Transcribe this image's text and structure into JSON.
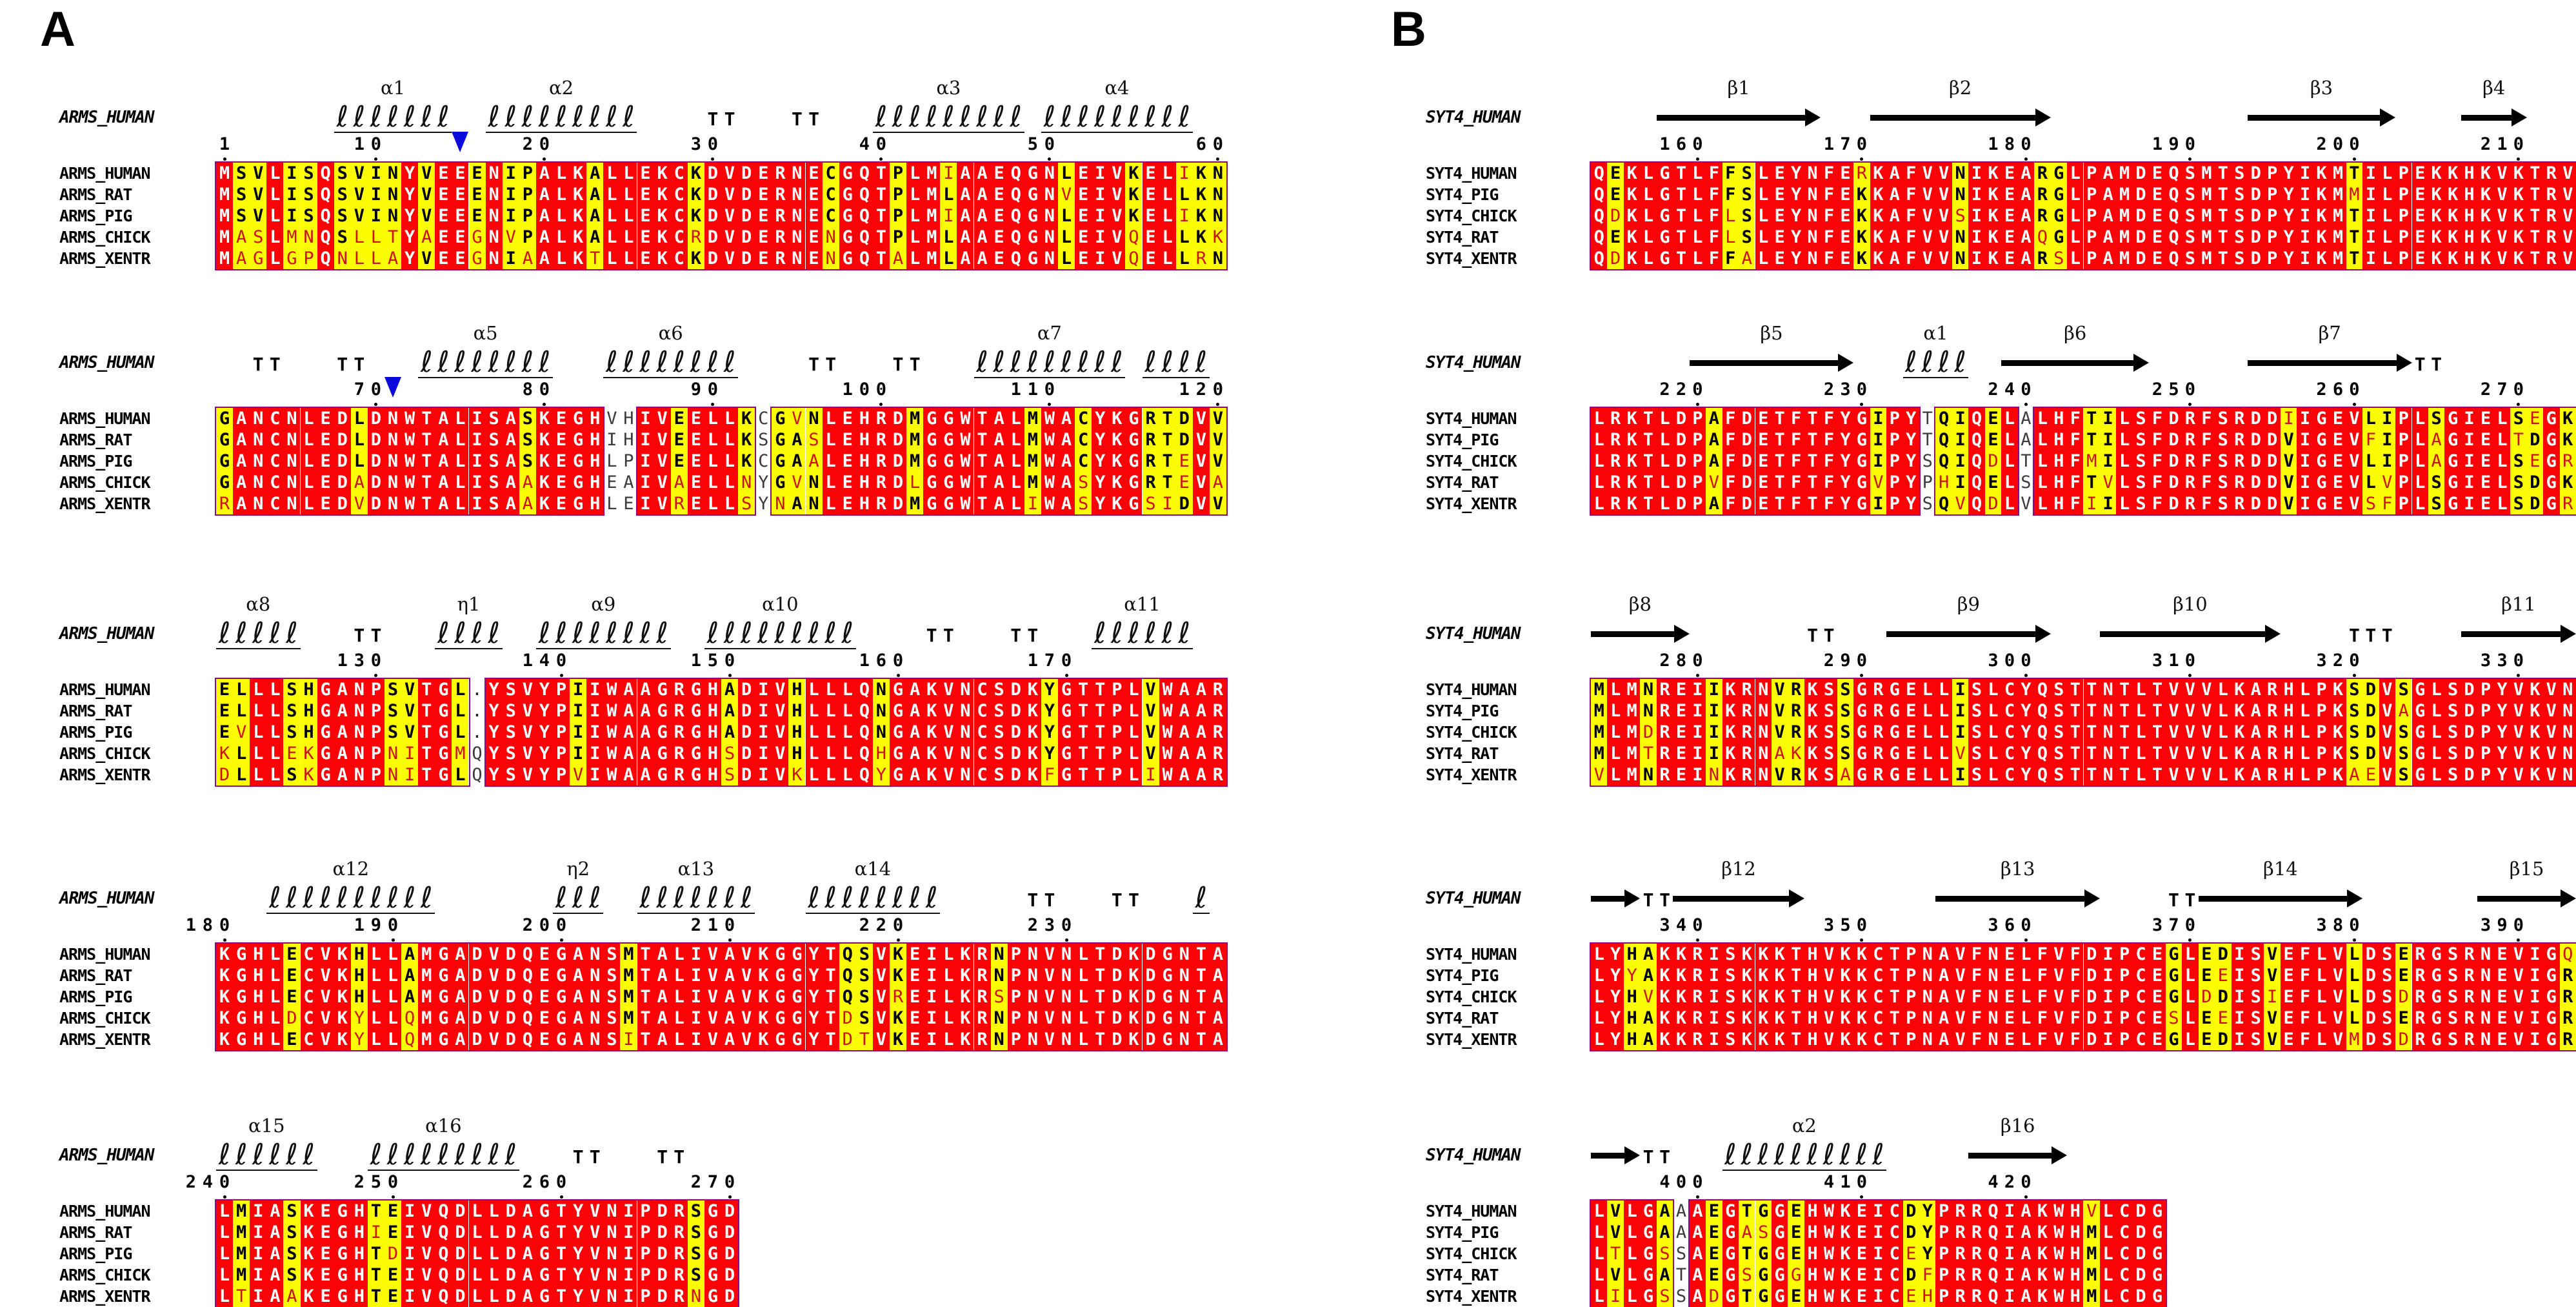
{
  "figure": {
    "panel_a_label": "A",
    "panel_b_label": "B"
  },
  "colors": {
    "identical_bg": "#fb0207",
    "identical_fg": "#ffffff",
    "similar_bg": "#fcfc02",
    "similar_fg": "#000000",
    "different_fg": "#cf1010",
    "frame": "#8b0a8b",
    "marker": "#0a0adc"
  },
  "panels": [
    {
      "id": "A",
      "ref_label": "ARMS_HUMAN",
      "row_names": [
        "ARMS_HUMAN",
        "ARMS_RAT",
        "ARMS_PIG",
        "ARMS_CHICK",
        "ARMS_XENTR"
      ],
      "blocks": [
        {
          "ss": [
            {
              "type": "helix",
              "label": "α1",
              "from": 8,
              "to": 14
            },
            {
              "type": "marker",
              "at": 15
            },
            {
              "type": "helix",
              "label": "α2",
              "from": 17,
              "to": 25
            },
            {
              "type": "turn",
              "text": "TT",
              "from": 30,
              "to": 31
            },
            {
              "type": "turn",
              "text": "TT",
              "from": 35,
              "to": 36
            },
            {
              "type": "helix",
              "label": "α3",
              "from": 40,
              "to": 48
            },
            {
              "type": "helix",
              "label": "α4",
              "from": 50,
              "to": 58
            }
          ],
          "ticks": [
            {
              "col": 1,
              "label": "1"
            },
            {
              "col": 10,
              "label": "10"
            },
            {
              "col": 20,
              "label": "20"
            },
            {
              "col": 30,
              "label": "30"
            },
            {
              "col": 40,
              "label": "40"
            },
            {
              "col": 50,
              "label": "50"
            },
            {
              "col": 60,
              "label": "60"
            }
          ],
          "sequences": [
            "MSVLISQSVINYVEEENIPALKALLEKCKDVDERNECGQTPLMIAAEQGNLEIVKELIKN",
            "MSVLISQSVINYVEEENIPALKALLEKCKDVDERNECGQTPLMLAAEQGNVEIVKELLKN",
            "MSVLISQSVINYVEEENIPALKALLEKCKDVDERNECGQTPLMIAAEQGNLEIVKELIKN",
            "MASLMNQSLLTYAEEGNVPALKALLEKCRDVDERNENGQTPLMLAAEQGNLEIVQELLKK",
            "MAGLGPQNLLAYVEEGNIAALKTLLEKCKDVDERNENGQTALMLAAEQGNLEIVQELLRN"
          ]
        },
        {
          "ss": [
            {
              "type": "turn",
              "text": "TT",
              "from": 3,
              "to": 4
            },
            {
              "type": "turn",
              "text": "TT",
              "from": 8,
              "to": 9
            },
            {
              "type": "marker",
              "at": 11
            },
            {
              "type": "helix",
              "label": "α5",
              "from": 13,
              "to": 20
            },
            {
              "type": "helix",
              "label": "α6",
              "from": 24,
              "to": 31
            },
            {
              "type": "turn",
              "text": "TT",
              "from": 36,
              "to": 37
            },
            {
              "type": "turn",
              "text": "TT",
              "from": 41,
              "to": 42
            },
            {
              "type": "helix",
              "label": "α7",
              "from": 46,
              "to": 54
            },
            {
              "type": "helix",
              "label": "",
              "from": 56,
              "to": 59
            }
          ],
          "ticks": [
            {
              "col": 10,
              "label": "70"
            },
            {
              "col": 20,
              "label": "80"
            },
            {
              "col": 30,
              "label": "90"
            },
            {
              "col": 40,
              "label": "100"
            },
            {
              "col": 50,
              "label": "110"
            },
            {
              "col": 60,
              "label": "120"
            }
          ],
          "sequences": [
            "GANCNLEDLDNWTALISASKEGHVHIVEELLKCGVNLEHRDMGGWTALMWACYKGRTDVV",
            "GANCNLEDLDNWTALISASKEGHIHIVEELLKSGASLEHRDMGGWTALMWACYKGRTDVV",
            "GANCNLEDLDNWTALISASKEGHLPIVEELLKCGAALEHRDMGGWTALMWACYKGRTEVV",
            "GANCNLEDADNWTALISAAKEGHEAIVAELLNYGVNLEHRDLGGWTALMWASYKGRTEVA",
            "RANCNLEDVDNWTALISAAKEGHLEIVRELLSYNANLEHRDMGGWTALIWASYKGSIDVV"
          ]
        },
        {
          "ss": [
            {
              "type": "helix",
              "label": "α8",
              "from": 1,
              "to": 5
            },
            {
              "type": "turn",
              "text": "TT",
              "from": 9,
              "to": 10
            },
            {
              "type": "helix",
              "label": "η1",
              "from": 14,
              "to": 17
            },
            {
              "type": "helix",
              "label": "α9",
              "from": 20,
              "to": 27
            },
            {
              "type": "helix",
              "label": "α10",
              "from": 30,
              "to": 38
            },
            {
              "type": "turn",
              "text": "TT",
              "from": 43,
              "to": 44
            },
            {
              "type": "turn",
              "text": "TT",
              "from": 48,
              "to": 49
            },
            {
              "type": "helix",
              "label": "α11",
              "from": 53,
              "to": 58
            }
          ],
          "ticks": [
            {
              "col": 10,
              "label": "130"
            },
            {
              "col": 21,
              "label": "140"
            },
            {
              "col": 31,
              "label": "150"
            },
            {
              "col": 41,
              "label": "160"
            },
            {
              "col": 51,
              "label": "170"
            }
          ],
          "sequences": [
            "ELLLSHGANPSVTGL.YSVYPIIWAAGRGHADIVHLLLQNGAKVNCSDKYGTTPLVWAAR",
            "ELLLSHGANPSVTGL.YSVYPIIWAAGRGHADIVHLLLQNGAKVNCSDKYGTTPLVWAAR",
            "EVLLSHGANPSVTGL.YSVYPIIWAAGRGHADIVHLLLQNGAKVNCSDKYGTTPLVWAAR",
            "KLLLEKGANPNITGMQYSVYPIIWAAGRGHSDIVHLLLQHGAKVNCSDKYGTTPLVWAAR",
            "DLLLSKGANPNITGLQYSVYPVIWAAGRGHSDIVKLLLQYGAKVNCSDKFGTTPLIWAAR"
          ]
        },
        {
          "ss": [
            {
              "type": "helix",
              "label": "α12",
              "from": 4,
              "to": 13
            },
            {
              "type": "helix",
              "label": "η2",
              "from": 21,
              "to": 23
            },
            {
              "type": "helix",
              "label": "α13",
              "from": 26,
              "to": 32
            },
            {
              "type": "helix",
              "label": "α14",
              "from": 36,
              "to": 43
            },
            {
              "type": "turn",
              "text": "TT",
              "from": 49,
              "to": 50
            },
            {
              "type": "turn",
              "text": "TT",
              "from": 54,
              "to": 55
            },
            {
              "type": "helix",
              "label": "",
              "from": 59,
              "to": 59
            }
          ],
          "ticks": [
            {
              "col": 1,
              "label": "180"
            },
            {
              "col": 11,
              "label": "190"
            },
            {
              "col": 21,
              "label": "200"
            },
            {
              "col": 31,
              "label": "210"
            },
            {
              "col": 41,
              "label": "220"
            },
            {
              "col": 51,
              "label": "230"
            }
          ],
          "sequences": [
            "KGHLECVKHLLAMGADVDQEGANSMTALIVAVKGGYTQSVKEILKRNPNVNLTDKDGNTA",
            "KGHLECVKHLLAMGADVDQEGANSMTALIVAVKGGYTQSVKEILKRNPNVNLTDKDGNTA",
            "KGHLECVKHLLAMGADVDQEGANSMTALIVAVKGGYTQSVREILKRSPNVNLTDKDGNTA",
            "KGHLDCVKYLLQMGADVDQEGANSMTALIVAVKGGYTDSVKEILKRNPNVNLTDKDGNTA",
            "KGHLECVKYLLQMGADVDQEGANSITALIVAVKGGYTDTVKEILKRNPNVNLTDKDGNTA"
          ]
        },
        {
          "ss": [
            {
              "type": "helix",
              "label": "α15",
              "from": 1,
              "to": 6
            },
            {
              "type": "helix",
              "label": "α16",
              "from": 10,
              "to": 18
            },
            {
              "type": "turn",
              "text": "TT",
              "from": 22,
              "to": 23
            },
            {
              "type": "turn",
              "text": "TT",
              "from": 27,
              "to": 28
            }
          ],
          "ticks": [
            {
              "col": 1,
              "label": "240"
            },
            {
              "col": 11,
              "label": "250"
            },
            {
              "col": 21,
              "label": "260"
            },
            {
              "col": 31,
              "label": "270"
            }
          ],
          "sequences": [
            "LMIASKEGHTEIVQDLLDAGTYVNIPDRSGD",
            "LMIASKEGHIEIVQDLLDAGTYVNIPDRSGD",
            "LMIASKEGHTDIVQDLLDAGTYVNIPDRSGD",
            "LMIASKEGHTEIVQDLLDAGTYVNIPDRSGD",
            "LTIAAKEGHTEIVQDLLDAGTYVNIPDRNGD"
          ]
        }
      ]
    },
    {
      "id": "B",
      "ref_label": "SYT4_HUMAN",
      "row_names": [
        "SYT4_HUMAN",
        "SYT4_PIG",
        "SYT4_CHICK",
        "SYT4_RAT",
        "SYT4_XENTR"
      ],
      "blocks": [
        {
          "ss": [
            {
              "type": "strand",
              "label": "β1",
              "from": 5,
              "to": 14
            },
            {
              "type": "strand",
              "label": "β2",
              "from": 18,
              "to": 28
            },
            {
              "type": "strand",
              "label": "β3",
              "from": 41,
              "to": 49
            },
            {
              "type": "strand",
              "label": "β4",
              "from": 54,
              "to": 57
            }
          ],
          "ticks": [
            {
              "col": 7,
              "label": "160"
            },
            {
              "col": 17,
              "label": "170"
            },
            {
              "col": 27,
              "label": "180"
            },
            {
              "col": 37,
              "label": "190"
            },
            {
              "col": 47,
              "label": "200"
            },
            {
              "col": 57,
              "label": "210"
            }
          ],
          "sequences": [
            "QEKLGTLFFSLEYNFERKAFVVNIKEARGLPAMDEQSMTSDPYIKMTILPEKKHKVKTRV",
            "QEKLGTLFFSLEYNFEKKAFVVNIKEARGLPAMDEQSMTSDPYIKMMILPEKKHKVKTRV",
            "QDKLGTLFLSLEYNFEKKAFVVSIKEARGLPAMDEQSMTSDPYIKMTILPEKKHKVKTRV",
            "QEKLGTLFLSLEYNFEKKAFVVNIKEAQGLPAMDEQSMTSDPYIKMTILPEKKHKVKTRV",
            "QDKLGTLFFALEYNFEKKAFVVNIKEARSLPAMDEQSMTSDPYIKMTILPEKKHKVKTRV"
          ]
        },
        {
          "ss": [
            {
              "type": "strand",
              "label": "β5",
              "from": 7,
              "to": 16
            },
            {
              "type": "helix",
              "label": "α1",
              "from": 20,
              "to": 23
            },
            {
              "type": "strand",
              "label": "β6",
              "from": 26,
              "to": 34
            },
            {
              "type": "strand",
              "label": "β7",
              "from": 41,
              "to": 50
            },
            {
              "type": "turn",
              "text": "TT",
              "from": 51,
              "to": 52
            }
          ],
          "ticks": [
            {
              "col": 7,
              "label": "220"
            },
            {
              "col": 17,
              "label": "230"
            },
            {
              "col": 27,
              "label": "240"
            },
            {
              "col": 37,
              "label": "250"
            },
            {
              "col": 47,
              "label": "260"
            },
            {
              "col": 57,
              "label": "270"
            }
          ],
          "sequences": [
            "LRKTLDPAFDETFTFYGIPYTQIQELALHFTILSFDRFSRDDIIGEVLIPLSGIELSEGK",
            "LRKTLDPAFDETFTFYGIPYTQIQELALHFTILSFDRFSRDDVIGEVFIPLAGIELTDGK",
            "LRKTLDPAFDETFTFYGIPYSQIQDLTLHFMILSFDRFSRDDVIGEVLIPLAGIELSEGR",
            "LRKTLDPVFDETFTFYGVPYPHIQELSLHFTVLSFDRFSRDDVIGEVLVPLSGIELSDGK",
            "LRKTLDPAFDETFTFYGIPYSQVQDLVLHFIILSFDRFSRDDVIGEVSFPLSGIELSDGR"
          ]
        },
        {
          "ss": [
            {
              "type": "strand",
              "label": "β8",
              "from": 1,
              "to": 6
            },
            {
              "type": "turn",
              "text": "TT",
              "from": 14,
              "to": 15
            },
            {
              "type": "strand",
              "label": "β9",
              "from": 19,
              "to": 28
            },
            {
              "type": "strand",
              "label": "β10",
              "from": 32,
              "to": 42
            },
            {
              "type": "turn",
              "text": "TTT",
              "from": 47,
              "to": 49
            },
            {
              "type": "strand",
              "label": "β11",
              "from": 54,
              "to": 60
            }
          ],
          "ticks": [
            {
              "col": 7,
              "label": "280"
            },
            {
              "col": 17,
              "label": "290"
            },
            {
              "col": 27,
              "label": "300"
            },
            {
              "col": 37,
              "label": "310"
            },
            {
              "col": 47,
              "label": "320"
            },
            {
              "col": 57,
              "label": "330"
            }
          ],
          "sequences": [
            "MLMNREIIKRNVRKSSGRGELLISLCYQSTTNTLTVVVLKARHLPKSDVSGLSDPYVKVN",
            "MLMNREIIKRNVRKSSGRGELLISLCYQSTTNTLTVVVLKARHLPKSDVAGLSDPYVKVN",
            "MLMDREIIKRNVRKSSGRGELLISLCYQSTTNTLTVVVLKARHLPKSDVSGLSDPYVKVN",
            "MLMTREIIKRNAKKSSGRGELLVSLCYQSTTNTLTVVVLKARHLPKSDVSGLSDPYVKVN",
            "VLMNREINKRNVRKSAGRGELLISLCYQSTTNTLTVVVLKARHLPKAEVSGLSDPYVKVN"
          ]
        },
        {
          "ss": [
            {
              "type": "strand",
              "label": "",
              "from": 1,
              "to": 3
            },
            {
              "type": "turn",
              "text": "TT",
              "from": 4,
              "to": 5
            },
            {
              "type": "strand",
              "label": "β12",
              "from": 6,
              "to": 13
            },
            {
              "type": "strand",
              "label": "β13",
              "from": 22,
              "to": 31
            },
            {
              "type": "turn",
              "text": "TT",
              "from": 36,
              "to": 37
            },
            {
              "type": "strand",
              "label": "β14",
              "from": 38,
              "to": 47
            },
            {
              "type": "strand",
              "label": "β15",
              "from": 55,
              "to": 60
            }
          ],
          "ticks": [
            {
              "col": 7,
              "label": "340"
            },
            {
              "col": 17,
              "label": "350"
            },
            {
              "col": 27,
              "label": "360"
            },
            {
              "col": 37,
              "label": "370"
            },
            {
              "col": 47,
              "label": "380"
            },
            {
              "col": 57,
              "label": "390"
            }
          ],
          "sequences": [
            "LYHAKKRISKKKTHVKKCTPNAVFNELFVFDIPCEGLEDISVEFLVLDSERGSRNEVIGQ",
            "LYYAKKRISKKKTHVKKCTPNAVFNELFVFDIPCEGLEEISVEFLVLDSERGSRNEVIGR",
            "LYHVKKRISKKKTHVKKCTPNAVFNELFVFDIPCEGLDDISIEFLVLDSDRGSRNEVIGR",
            "LYHAKKRISKKKTHVKKCTPNAVFNELFVFDIPCESLEEISVEFLVLDSERGSRNEVIGR",
            "LYHAKKRISKKKTHVKKCTPNAVFNELFVFDIPCEGLEDISVEFLVMDSDRGSRNEVIGR"
          ]
        },
        {
          "ss": [
            {
              "type": "strand",
              "label": "",
              "from": 1,
              "to": 3
            },
            {
              "type": "turn",
              "text": "TT",
              "from": 4,
              "to": 5
            },
            {
              "type": "helix",
              "label": "α2",
              "from": 9,
              "to": 18
            },
            {
              "type": "strand",
              "label": "β16",
              "from": 24,
              "to": 29
            }
          ],
          "ticks": [
            {
              "col": 7,
              "label": "400"
            },
            {
              "col": 17,
              "label": "410"
            },
            {
              "col": 27,
              "label": "420"
            }
          ],
          "sequences": [
            "LVLGAAAEGTGGEHWKEICDYPRRQIAKWHVLCDG",
            "LVLGAAAEGASGEHWKEICDYPRRQIAKWHMLCDG",
            "LTLGSSAEGTGGEHWKEICEYPRRQIAKWHMLCDG",
            "LVLGATAEGSGGGHWKEICDFPRRQIAKWHMLCDG",
            "LILGSSADGTGGEHWKEICEHPRRQIAKWHMLCDG"
          ]
        }
      ]
    }
  ]
}
